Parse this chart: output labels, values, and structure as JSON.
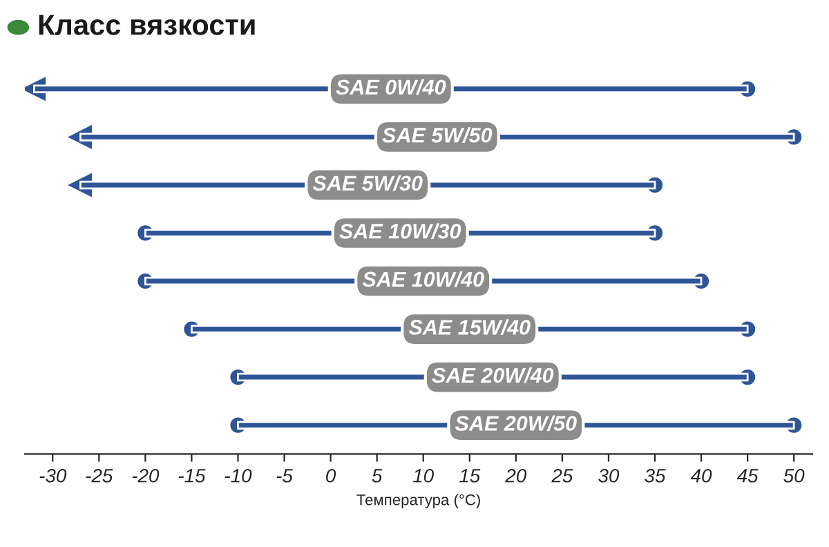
{
  "chart_data": {
    "type": "bar",
    "orientation": "horizontal",
    "title": "Класс вязкости",
    "xlabel": "Температура (°С)",
    "categories": [
      "SAE 0W/40",
      "SAE 5W/50",
      "SAE 5W/30",
      "SAE 10W/30",
      "SAE 10W/40",
      "SAE 15W/40",
      "SAE 20W/40",
      "SAE 20W/50"
    ],
    "base": [
      -32,
      -27,
      -27,
      -20,
      -20,
      -15,
      -10,
      -10
    ],
    "values": [
      77,
      77,
      62,
      55,
      60,
      60,
      55,
      60
    ],
    "color": "#2f5597",
    "xlim": [
      -33,
      52
    ],
    "xticks": [
      -30,
      -25,
      -20,
      -15,
      -10,
      -5,
      0,
      5,
      10,
      15,
      20,
      25,
      30,
      35,
      40,
      45,
      50
    ],
    "tick_labels": "x",
    "grid": false,
    "legend": false
  }
}
